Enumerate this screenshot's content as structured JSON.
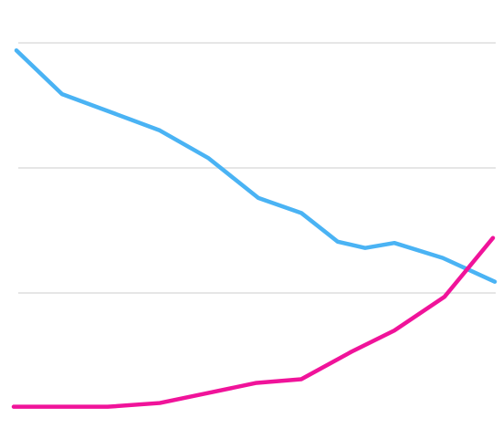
{
  "chart_data": {
    "type": "line",
    "xlim": [
      0,
      527
    ],
    "ylim": [
      0,
      3.2
    ],
    "yticks": [
      1,
      2,
      3
    ],
    "grid": true,
    "series": [
      {
        "color": "#4ab3f4",
        "x": [
          3,
          53,
          105,
          160,
          213,
          268,
          315,
          355,
          385,
          417,
          470,
          527
        ],
        "values": [
          2.94,
          2.59,
          2.45,
          2.3,
          2.08,
          1.76,
          1.64,
          1.41,
          1.36,
          1.4,
          1.28,
          1.09
        ]
      },
      {
        "color": "#f0139a",
        "x": [
          0,
          103,
          160,
          213,
          265,
          315,
          370,
          417,
          472,
          525
        ],
        "values": [
          0.09,
          0.09,
          0.12,
          0.2,
          0.28,
          0.31,
          0.53,
          0.7,
          0.97,
          1.44
        ]
      }
    ]
  }
}
